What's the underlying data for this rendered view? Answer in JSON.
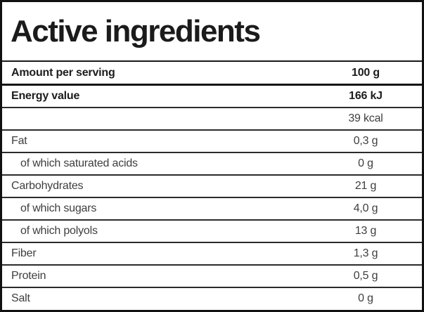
{
  "title": "Active ingredients",
  "colors": {
    "border_outer": "#111111",
    "divider_normal": "#2b2b2b",
    "divider_thick": "#141414",
    "text_bold": "#1c1c1c",
    "text_regular": "#3e3e3e",
    "background": "#ffffff"
  },
  "table": {
    "columns": [
      "ingredient",
      "amount"
    ],
    "rows": [
      {
        "label": "Amount per serving",
        "value": "100 g",
        "bold": true,
        "indent": false,
        "divider": "thick"
      },
      {
        "label": "Energy value",
        "value": "166 kJ",
        "bold": true,
        "indent": false,
        "divider": "normal"
      },
      {
        "label": "",
        "value": "39 kcal",
        "bold": false,
        "indent": false,
        "divider": "normal"
      },
      {
        "label": "Fat",
        "value": "0,3 g",
        "bold": false,
        "indent": false,
        "divider": "normal"
      },
      {
        "label": "of which saturated acids",
        "value": "0 g",
        "bold": false,
        "indent": true,
        "divider": "normal"
      },
      {
        "label": "Carbohydrates",
        "value": "21 g",
        "bold": false,
        "indent": false,
        "divider": "normal"
      },
      {
        "label": "of which sugars",
        "value": "4,0 g",
        "bold": false,
        "indent": true,
        "divider": "normal"
      },
      {
        "label": "of which polyols",
        "value": "13 g",
        "bold": false,
        "indent": true,
        "divider": "normal"
      },
      {
        "label": "Fiber",
        "value": "1,3 g",
        "bold": false,
        "indent": false,
        "divider": "normal"
      },
      {
        "label": "Protein",
        "value": "0,5 g",
        "bold": false,
        "indent": false,
        "divider": "normal"
      },
      {
        "label": "Salt",
        "value": "0 g",
        "bold": false,
        "indent": false,
        "divider": "none"
      }
    ]
  }
}
